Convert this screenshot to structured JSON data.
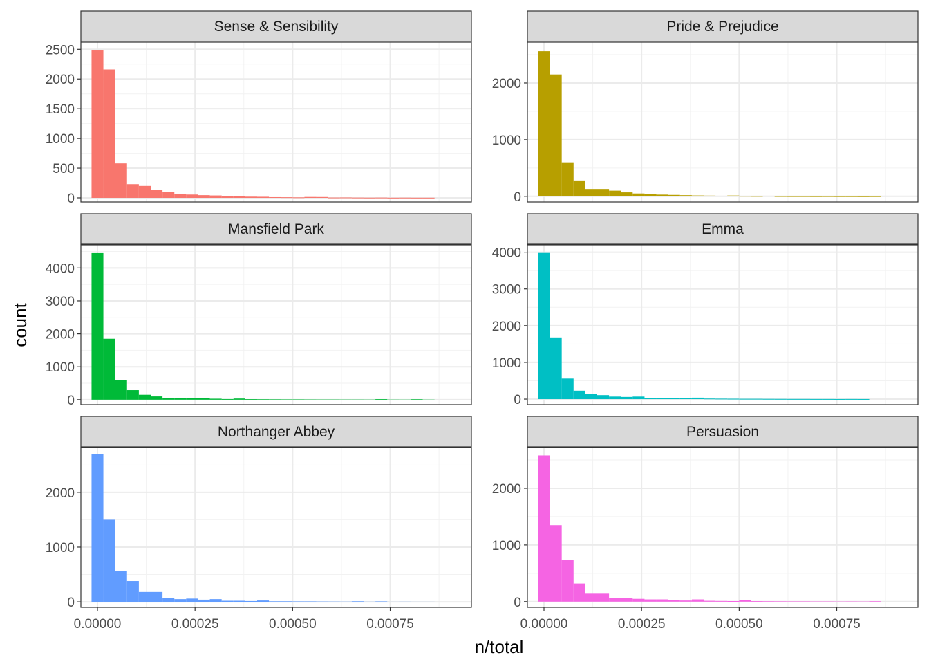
{
  "chart_data": {
    "type": "bar",
    "subtype": "faceted-histogram",
    "xlabel": "n/total",
    "ylabel": "count",
    "grid": true,
    "legend": "none",
    "bin_width": 3.03e-05,
    "x_ticks": [
      0,
      0.00025,
      0.0005,
      0.00075
    ],
    "x_tick_labels": [
      "0.00000",
      "0.00025",
      "0.00050",
      "0.00075"
    ],
    "x_range": [
      -4.25e-05,
      0.000958
    ],
    "panels": [
      {
        "title": "Sense & Sensibility",
        "color": "#F8766D",
        "ylim": [
          -70,
          2620
        ],
        "y_ticks": [
          0,
          500,
          1000,
          1500,
          2000,
          2500
        ],
        "bins": [
          {
            "x": 0.0,
            "count": 2480
          },
          {
            "x": 3.03e-05,
            "count": 2160
          },
          {
            "x": 6.06e-05,
            "count": 580
          },
          {
            "x": 9.09e-05,
            "count": 230
          },
          {
            "x": 0.0001212,
            "count": 200
          },
          {
            "x": 0.0001515,
            "count": 130
          },
          {
            "x": 0.0001818,
            "count": 100
          },
          {
            "x": 0.0002121,
            "count": 60
          },
          {
            "x": 0.0002424,
            "count": 55
          },
          {
            "x": 0.0002727,
            "count": 45
          },
          {
            "x": 0.000303,
            "count": 40
          },
          {
            "x": 0.0003333,
            "count": 25
          },
          {
            "x": 0.0003636,
            "count": 30
          },
          {
            "x": 0.0003939,
            "count": 20
          },
          {
            "x": 0.0004242,
            "count": 18
          },
          {
            "x": 0.0004545,
            "count": 12
          },
          {
            "x": 0.0004848,
            "count": 10
          },
          {
            "x": 0.0005151,
            "count": 8
          },
          {
            "x": 0.0005454,
            "count": 15
          },
          {
            "x": 0.0005757,
            "count": 14
          },
          {
            "x": 0.000606,
            "count": 5
          },
          {
            "x": 0.0006363,
            "count": 6
          },
          {
            "x": 0.0006666,
            "count": 4
          },
          {
            "x": 0.0006969,
            "count": 3
          },
          {
            "x": 0.0007272,
            "count": 4
          },
          {
            "x": 0.0007575,
            "count": 2
          },
          {
            "x": 0.0007878,
            "count": 3
          },
          {
            "x": 0.0008181,
            "count": 2
          },
          {
            "x": 0.0008484,
            "count": 2
          }
        ]
      },
      {
        "title": "Pride & Prejudice",
        "color": "#B79F00",
        "ylim": [
          -100,
          2720
        ],
        "y_ticks": [
          0,
          1000,
          2000
        ],
        "bins": [
          {
            "x": 0.0,
            "count": 2560
          },
          {
            "x": 3.03e-05,
            "count": 2150
          },
          {
            "x": 6.06e-05,
            "count": 600
          },
          {
            "x": 9.09e-05,
            "count": 280
          },
          {
            "x": 0.0001212,
            "count": 130
          },
          {
            "x": 0.0001515,
            "count": 130
          },
          {
            "x": 0.0001818,
            "count": 100
          },
          {
            "x": 0.0002121,
            "count": 70
          },
          {
            "x": 0.0002424,
            "count": 50
          },
          {
            "x": 0.0002727,
            "count": 40
          },
          {
            "x": 0.000303,
            "count": 30
          },
          {
            "x": 0.0003333,
            "count": 25
          },
          {
            "x": 0.0003636,
            "count": 20
          },
          {
            "x": 0.0003939,
            "count": 15
          },
          {
            "x": 0.0004242,
            "count": 12
          },
          {
            "x": 0.0004545,
            "count": 10
          },
          {
            "x": 0.0004848,
            "count": 14
          },
          {
            "x": 0.0005151,
            "count": 8
          },
          {
            "x": 0.0005454,
            "count": 6
          },
          {
            "x": 0.0005757,
            "count": 10
          },
          {
            "x": 0.000606,
            "count": 4
          },
          {
            "x": 0.0006363,
            "count": 3
          },
          {
            "x": 0.0006666,
            "count": 3
          },
          {
            "x": 0.0006969,
            "count": 2
          },
          {
            "x": 0.0007272,
            "count": 3
          },
          {
            "x": 0.0007575,
            "count": 2
          },
          {
            "x": 0.0007878,
            "count": 2
          },
          {
            "x": 0.0008181,
            "count": 1
          },
          {
            "x": 0.0008484,
            "count": 2
          }
        ]
      },
      {
        "title": "Mansfield Park",
        "color": "#00BA38",
        "ylim": [
          -150,
          4700
        ],
        "y_ticks": [
          0,
          1000,
          2000,
          3000,
          4000
        ],
        "bins": [
          {
            "x": 0.0,
            "count": 4450
          },
          {
            "x": 3.03e-05,
            "count": 1850
          },
          {
            "x": 6.06e-05,
            "count": 590
          },
          {
            "x": 9.09e-05,
            "count": 290
          },
          {
            "x": 0.0001212,
            "count": 150
          },
          {
            "x": 0.0001515,
            "count": 100
          },
          {
            "x": 0.0001818,
            "count": 60
          },
          {
            "x": 0.0002121,
            "count": 50
          },
          {
            "x": 0.0002424,
            "count": 50
          },
          {
            "x": 0.0002727,
            "count": 40
          },
          {
            "x": 0.000303,
            "count": 30
          },
          {
            "x": 0.0003333,
            "count": 20
          },
          {
            "x": 0.0003636,
            "count": 35
          },
          {
            "x": 0.0003939,
            "count": 15
          },
          {
            "x": 0.0004242,
            "count": 12
          },
          {
            "x": 0.0004545,
            "count": 10
          },
          {
            "x": 0.0004848,
            "count": 8
          },
          {
            "x": 0.0005151,
            "count": 8
          },
          {
            "x": 0.0005454,
            "count": 6
          },
          {
            "x": 0.0005757,
            "count": 5
          },
          {
            "x": 0.000606,
            "count": 5
          },
          {
            "x": 0.0006363,
            "count": 4
          },
          {
            "x": 0.0006666,
            "count": 4
          },
          {
            "x": 0.0006969,
            "count": 3
          },
          {
            "x": 0.0007272,
            "count": 15
          },
          {
            "x": 0.0007575,
            "count": 3
          },
          {
            "x": 0.0007878,
            "count": 2
          },
          {
            "x": 0.0008181,
            "count": 12
          },
          {
            "x": 0.0008484,
            "count": 2
          }
        ]
      },
      {
        "title": "Emma",
        "color": "#00BFC4",
        "ylim": [
          -150,
          4200
        ],
        "y_ticks": [
          0,
          1000,
          2000,
          3000,
          4000
        ],
        "bins": [
          {
            "x": 0.0,
            "count": 3980
          },
          {
            "x": 3.03e-05,
            "count": 1680
          },
          {
            "x": 6.06e-05,
            "count": 560
          },
          {
            "x": 9.09e-05,
            "count": 230
          },
          {
            "x": 0.0001212,
            "count": 150
          },
          {
            "x": 0.0001515,
            "count": 110
          },
          {
            "x": 0.0001818,
            "count": 70
          },
          {
            "x": 0.0002121,
            "count": 60
          },
          {
            "x": 0.0002424,
            "count": 70
          },
          {
            "x": 0.0002727,
            "count": 30
          },
          {
            "x": 0.000303,
            "count": 30
          },
          {
            "x": 0.0003333,
            "count": 25
          },
          {
            "x": 0.0003636,
            "count": 20
          },
          {
            "x": 0.0003939,
            "count": 40
          },
          {
            "x": 0.0004242,
            "count": 15
          },
          {
            "x": 0.0004545,
            "count": 12
          },
          {
            "x": 0.0004848,
            "count": 10
          },
          {
            "x": 0.0005151,
            "count": 8
          },
          {
            "x": 0.0005454,
            "count": 8
          },
          {
            "x": 0.0005757,
            "count": 6
          },
          {
            "x": 0.000606,
            "count": 5
          },
          {
            "x": 0.0006363,
            "count": 4
          },
          {
            "x": 0.0006666,
            "count": 4
          },
          {
            "x": 0.0006969,
            "count": 3
          },
          {
            "x": 0.0007272,
            "count": 3
          },
          {
            "x": 0.0007575,
            "count": 2
          },
          {
            "x": 0.0007878,
            "count": 3
          },
          {
            "x": 0.0008181,
            "count": 2
          }
        ]
      },
      {
        "title": "Northanger Abbey",
        "color": "#619CFF",
        "ylim": [
          -100,
          2820
        ],
        "y_ticks": [
          0,
          1000,
          2000
        ],
        "bins": [
          {
            "x": 0.0,
            "count": 2700
          },
          {
            "x": 3.03e-05,
            "count": 1500
          },
          {
            "x": 6.06e-05,
            "count": 570
          },
          {
            "x": 9.09e-05,
            "count": 380
          },
          {
            "x": 0.0001212,
            "count": 180
          },
          {
            "x": 0.0001515,
            "count": 180
          },
          {
            "x": 0.0001818,
            "count": 70
          },
          {
            "x": 0.0002121,
            "count": 50
          },
          {
            "x": 0.0002424,
            "count": 60
          },
          {
            "x": 0.0002727,
            "count": 40
          },
          {
            "x": 0.000303,
            "count": 50
          },
          {
            "x": 0.0003333,
            "count": 20
          },
          {
            "x": 0.0003636,
            "count": 20
          },
          {
            "x": 0.0003939,
            "count": 15
          },
          {
            "x": 0.0004242,
            "count": 25
          },
          {
            "x": 0.0004545,
            "count": 10
          },
          {
            "x": 0.0004848,
            "count": 10
          },
          {
            "x": 0.0005151,
            "count": 8
          },
          {
            "x": 0.0005454,
            "count": 8
          },
          {
            "x": 0.0005757,
            "count": 6
          },
          {
            "x": 0.000606,
            "count": 5
          },
          {
            "x": 0.0006363,
            "count": 4
          },
          {
            "x": 0.0006666,
            "count": 10
          },
          {
            "x": 0.0006969,
            "count": 3
          },
          {
            "x": 0.0007272,
            "count": 8
          },
          {
            "x": 0.0007575,
            "count": 2
          },
          {
            "x": 0.0007878,
            "count": 3
          },
          {
            "x": 0.0008181,
            "count": 2
          },
          {
            "x": 0.0008484,
            "count": 2
          }
        ]
      },
      {
        "title": "Persuasion",
        "color": "#F564E3",
        "ylim": [
          -100,
          2720
        ],
        "y_ticks": [
          0,
          1000,
          2000
        ],
        "bins": [
          {
            "x": 0.0,
            "count": 2580
          },
          {
            "x": 3.03e-05,
            "count": 1350
          },
          {
            "x": 6.06e-05,
            "count": 730
          },
          {
            "x": 9.09e-05,
            "count": 320
          },
          {
            "x": 0.0001212,
            "count": 140
          },
          {
            "x": 0.0001515,
            "count": 140
          },
          {
            "x": 0.0001818,
            "count": 70
          },
          {
            "x": 0.0002121,
            "count": 60
          },
          {
            "x": 0.0002424,
            "count": 50
          },
          {
            "x": 0.0002727,
            "count": 40
          },
          {
            "x": 0.000303,
            "count": 40
          },
          {
            "x": 0.0003333,
            "count": 25
          },
          {
            "x": 0.0003636,
            "count": 20
          },
          {
            "x": 0.0003939,
            "count": 40
          },
          {
            "x": 0.0004242,
            "count": 15
          },
          {
            "x": 0.0004545,
            "count": 12
          },
          {
            "x": 0.0004848,
            "count": 10
          },
          {
            "x": 0.0005151,
            "count": 25
          },
          {
            "x": 0.0005454,
            "count": 8
          },
          {
            "x": 0.0005757,
            "count": 6
          },
          {
            "x": 0.000606,
            "count": 5
          },
          {
            "x": 0.0006363,
            "count": 4
          },
          {
            "x": 0.0006666,
            "count": 4
          },
          {
            "x": 0.0006969,
            "count": 3
          },
          {
            "x": 0.0007272,
            "count": 3
          },
          {
            "x": 0.0007575,
            "count": 2
          },
          {
            "x": 0.0007878,
            "count": 3
          },
          {
            "x": 0.0008181,
            "count": 2
          },
          {
            "x": 0.0008484,
            "count": 6
          }
        ]
      }
    ]
  }
}
